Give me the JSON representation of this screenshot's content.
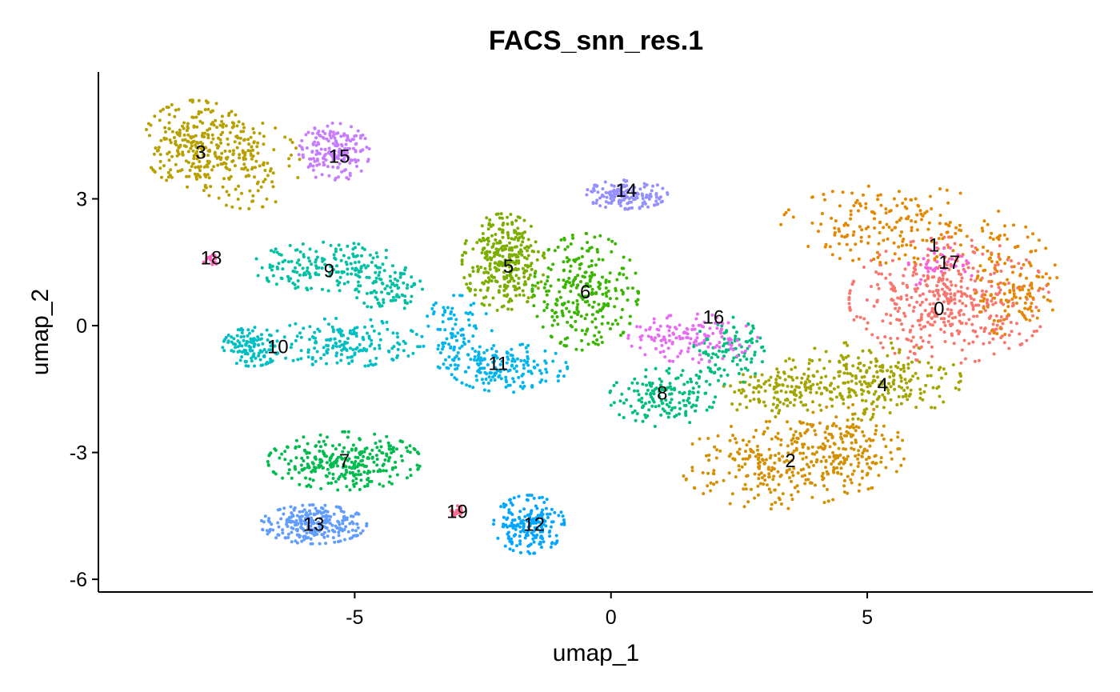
{
  "chart_data": {
    "type": "scatter",
    "title": "FACS_snn_res.1",
    "xlabel": "umap_1",
    "ylabel": "umap_2",
    "xlim": [
      -10,
      9.4
    ],
    "ylim": [
      -6.3,
      6
    ],
    "x_ticks": [
      -5,
      0,
      5
    ],
    "x_tick_labels": [
      "-5",
      "0",
      "5"
    ],
    "y_ticks": [
      -6,
      -3,
      0,
      3
    ],
    "y_tick_labels": [
      "-6",
      "-3",
      "0",
      "3"
    ],
    "grid": false,
    "legend": "none",
    "clusters": [
      {
        "name": "0",
        "color": "#F8766D",
        "center": [
          6.4,
          0.4
        ],
        "size": 450,
        "blobs": [
          [
            6.6,
            0.6,
            1.7,
            1.3,
            1
          ]
        ]
      },
      {
        "name": "1",
        "color": "#E58700",
        "center": [
          6.3,
          1.9
        ],
        "size": 320,
        "blobs": [
          [
            5.5,
            2.4,
            1.9,
            0.8,
            0.6
          ],
          [
            7.9,
            1.0,
            0.7,
            1.2,
            0.4
          ]
        ]
      },
      {
        "name": "2",
        "color": "#D49000",
        "center": [
          3.5,
          -3.2
        ],
        "size": 420,
        "blobs": [
          [
            3.2,
            -3.3,
            1.6,
            0.9,
            0.6
          ],
          [
            4.6,
            -2.9,
            1.0,
            0.9,
            0.4
          ]
        ]
      },
      {
        "name": "3",
        "color": "#B8A000",
        "center": [
          -8.0,
          4.1
        ],
        "size": 380,
        "blobs": [
          [
            -8.1,
            4.3,
            0.9,
            0.9,
            0.65
          ],
          [
            -7.1,
            3.8,
            0.9,
            0.9,
            0.35
          ]
        ]
      },
      {
        "name": "4",
        "color": "#A3A500",
        "center": [
          5.3,
          -1.4
        ],
        "size": 380,
        "blobs": [
          [
            5.0,
            -1.3,
            1.6,
            0.8,
            0.7
          ],
          [
            3.3,
            -1.6,
            1.0,
            0.5,
            0.3
          ]
        ]
      },
      {
        "name": "5",
        "color": "#7CAE00",
        "center": [
          -2.0,
          1.4
        ],
        "size": 320,
        "blobs": [
          [
            -2.1,
            1.5,
            0.7,
            1.0,
            1
          ]
        ]
      },
      {
        "name": "6",
        "color": "#39B600",
        "center": [
          -0.5,
          0.8
        ],
        "size": 280,
        "blobs": [
          [
            -0.5,
            0.8,
            0.9,
            1.2,
            1
          ]
        ]
      },
      {
        "name": "7",
        "color": "#00BB4E",
        "center": [
          -5.2,
          -3.2
        ],
        "size": 300,
        "blobs": [
          [
            -5.2,
            -3.2,
            1.3,
            0.6,
            1
          ]
        ]
      },
      {
        "name": "8",
        "color": "#00BF7D",
        "center": [
          1.0,
          -1.6
        ],
        "size": 260,
        "blobs": [
          [
            1.0,
            -1.7,
            0.9,
            0.6,
            0.6
          ],
          [
            2.3,
            -0.6,
            0.6,
            0.7,
            0.4
          ]
        ]
      },
      {
        "name": "9",
        "color": "#00C1A3",
        "center": [
          -5.5,
          1.3
        ],
        "size": 260,
        "blobs": [
          [
            -5.5,
            1.4,
            1.3,
            0.5,
            0.7
          ],
          [
            -4.3,
            0.8,
            0.6,
            0.4,
            0.3
          ]
        ]
      },
      {
        "name": "10",
        "color": "#00BFC4",
        "center": [
          -6.5,
          -0.5
        ],
        "size": 300,
        "blobs": [
          [
            -7.0,
            -0.5,
            0.5,
            0.4,
            0.4
          ],
          [
            -5.2,
            -0.4,
            1.3,
            0.5,
            0.6
          ]
        ]
      },
      {
        "name": "11",
        "color": "#00B5EE",
        "center": [
          -2.2,
          -0.9
        ],
        "size": 260,
        "blobs": [
          [
            -2.0,
            -1.0,
            1.0,
            0.5,
            0.6
          ],
          [
            -3.0,
            -0.2,
            0.6,
            0.8,
            0.4
          ]
        ]
      },
      {
        "name": "12",
        "color": "#00A6FF",
        "center": [
          -1.5,
          -4.7
        ],
        "size": 200,
        "blobs": [
          [
            -1.6,
            -4.7,
            0.6,
            0.6,
            1
          ]
        ]
      },
      {
        "name": "13",
        "color": "#619CFF",
        "center": [
          -5.8,
          -4.7
        ],
        "size": 260,
        "blobs": [
          [
            -5.8,
            -4.7,
            0.9,
            0.4,
            1
          ]
        ]
      },
      {
        "name": "14",
        "color": "#9590FF",
        "center": [
          0.3,
          3.2
        ],
        "size": 160,
        "blobs": [
          [
            0.3,
            3.1,
            0.7,
            0.3,
            1
          ]
        ]
      },
      {
        "name": "15",
        "color": "#C77CFF",
        "center": [
          -5.3,
          4.0
        ],
        "size": 180,
        "blobs": [
          [
            -5.4,
            4.1,
            0.6,
            0.6,
            1
          ]
        ]
      },
      {
        "name": "16",
        "color": "#E76BF3",
        "center": [
          2.0,
          0.2
        ],
        "size": 140,
        "blobs": [
          [
            1.6,
            -0.3,
            1.1,
            0.5,
            1
          ]
        ]
      },
      {
        "name": "17",
        "color": "#FA62DB",
        "center": [
          6.6,
          1.5
        ],
        "size": 40,
        "blobs": [
          [
            6.4,
            1.4,
            0.6,
            0.5,
            1
          ]
        ]
      },
      {
        "name": "18",
        "color": "#FF62BC",
        "center": [
          -7.8,
          1.6
        ],
        "size": 20,
        "blobs": [
          [
            -7.8,
            1.6,
            0.15,
            0.15,
            1
          ]
        ]
      },
      {
        "name": "19",
        "color": "#FF6C91",
        "center": [
          -3.0,
          -4.4
        ],
        "size": 20,
        "blobs": [
          [
            -3.0,
            -4.4,
            0.12,
            0.12,
            1
          ]
        ]
      }
    ]
  }
}
